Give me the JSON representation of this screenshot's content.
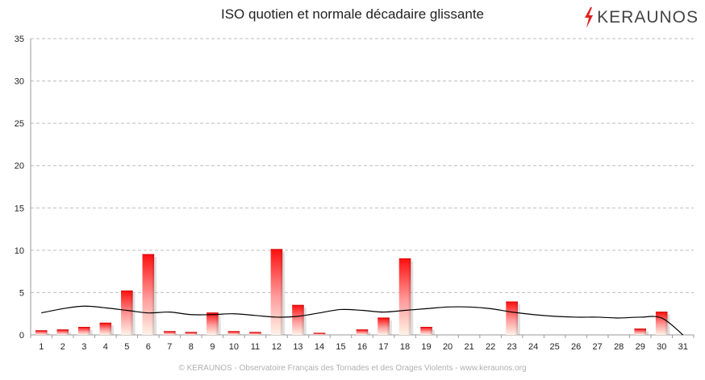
{
  "logo": {
    "text": "KERAUNOS",
    "icon": "lightning-bolt-icon",
    "icon_color": "#e02020"
  },
  "footer": "© KERAUNOS - Observatoire Français des Tornades et des Orages Violents - www.keraunos.org",
  "chart_data": {
    "type": "bar",
    "title": "ISO quotien et normale décadaire glissante",
    "categories": [
      "1",
      "2",
      "3",
      "4",
      "5",
      "6",
      "7",
      "8",
      "9",
      "10",
      "11",
      "12",
      "13",
      "14",
      "15",
      "16",
      "17",
      "18",
      "19",
      "20",
      "21",
      "22",
      "23",
      "24",
      "25",
      "26",
      "27",
      "28",
      "29",
      "30",
      "31"
    ],
    "series": [
      {
        "type": "bar",
        "values": [
          0.5,
          0.6,
          0.9,
          1.4,
          5.2,
          9.5,
          0.4,
          0.3,
          2.6,
          0.4,
          0.3,
          10.1,
          3.5,
          0.2,
          0,
          0.6,
          2.0,
          9.0,
          0.9,
          0,
          0,
          0,
          3.9,
          0,
          0,
          0,
          0,
          0,
          0.7,
          2.7,
          0
        ],
        "color": "#ff1a1a"
      },
      {
        "type": "line",
        "values": [
          2.6,
          3.1,
          3.4,
          3.2,
          2.9,
          2.6,
          2.7,
          2.4,
          2.4,
          2.5,
          2.3,
          2.1,
          2.2,
          2.6,
          3.0,
          2.9,
          2.7,
          2.9,
          3.1,
          3.3,
          3.3,
          3.1,
          2.7,
          2.4,
          2.2,
          2.1,
          2.1,
          2.0,
          2.1,
          2.0,
          0
        ],
        "color": "#000000"
      }
    ],
    "xlabel": "",
    "ylabel": "",
    "ylim": [
      0,
      35
    ],
    "yticks": [
      0,
      5,
      10,
      15,
      20,
      25,
      30,
      35
    ],
    "grid": true,
    "legend": "none"
  }
}
